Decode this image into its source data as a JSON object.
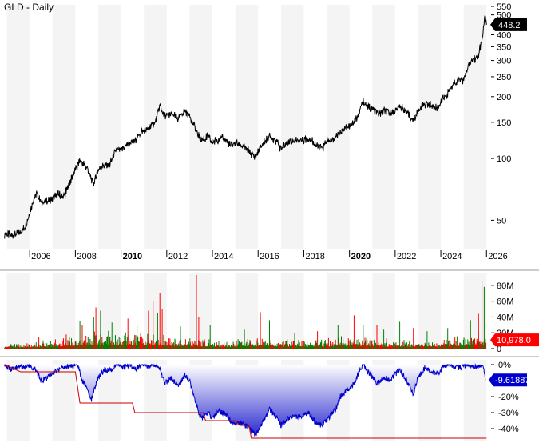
{
  "title": "GLD - Daily",
  "chart_data": [
    {
      "type": "line",
      "name": "price-panel",
      "title": "GLD - Daily",
      "scale": "log",
      "ylim": [
        36,
        560
      ],
      "xlim": [
        2004.7,
        2026.2
      ],
      "y_ticks": [
        50,
        100,
        150,
        200,
        250,
        300,
        350,
        400,
        450,
        500,
        550
      ],
      "x_ticks": [
        {
          "x": 2006,
          "label": "2006",
          "bold": false
        },
        {
          "x": 2008,
          "label": "2008",
          "bold": false
        },
        {
          "x": 2010,
          "label": "2010",
          "bold": true
        },
        {
          "x": 2012,
          "label": "2012",
          "bold": false
        },
        {
          "x": 2014,
          "label": "2014",
          "bold": false
        },
        {
          "x": 2016,
          "label": "2016",
          "bold": false
        },
        {
          "x": 2018,
          "label": "2018",
          "bold": false
        },
        {
          "x": 2020,
          "label": "2020",
          "bold": true
        },
        {
          "x": 2022,
          "label": "2022",
          "bold": false
        },
        {
          "x": 2024,
          "label": "2024",
          "bold": false
        },
        {
          "x": 2026,
          "label": "2026",
          "bold": false
        }
      ],
      "last_value_label": "448.2",
      "series": [
        {
          "color": "#000000",
          "points": [
            [
              2004.9,
              43
            ],
            [
              2005.2,
              42
            ],
            [
              2005.5,
              43
            ],
            [
              2005.8,
              46
            ],
            [
              2006.0,
              55
            ],
            [
              2006.3,
              68
            ],
            [
              2006.5,
              61
            ],
            [
              2006.8,
              62
            ],
            [
              2007.0,
              63
            ],
            [
              2007.2,
              67
            ],
            [
              2007.5,
              65
            ],
            [
              2007.8,
              78
            ],
            [
              2008.0,
              88
            ],
            [
              2008.2,
              98
            ],
            [
              2008.5,
              90
            ],
            [
              2008.8,
              75
            ],
            [
              2009.0,
              88
            ],
            [
              2009.2,
              92
            ],
            [
              2009.5,
              93
            ],
            [
              2009.8,
              110
            ],
            [
              2010.0,
              110
            ],
            [
              2010.3,
              118
            ],
            [
              2010.6,
              122
            ],
            [
              2010.9,
              135
            ],
            [
              2011.2,
              140
            ],
            [
              2011.5,
              150
            ],
            [
              2011.7,
              180
            ],
            [
              2011.9,
              160
            ],
            [
              2012.2,
              165
            ],
            [
              2012.5,
              155
            ],
            [
              2012.8,
              170
            ],
            [
              2013.0,
              162
            ],
            [
              2013.3,
              135
            ],
            [
              2013.5,
              123
            ],
            [
              2013.8,
              128
            ],
            [
              2014.0,
              120
            ],
            [
              2014.3,
              125
            ],
            [
              2014.5,
              126
            ],
            [
              2014.8,
              115
            ],
            [
              2015.0,
              120
            ],
            [
              2015.3,
              115
            ],
            [
              2015.6,
              108
            ],
            [
              2015.9,
              102
            ],
            [
              2016.2,
              118
            ],
            [
              2016.5,
              128
            ],
            [
              2016.8,
              122
            ],
            [
              2017.0,
              112
            ],
            [
              2017.3,
              120
            ],
            [
              2017.6,
              122
            ],
            [
              2017.9,
              123
            ],
            [
              2018.2,
              126
            ],
            [
              2018.6,
              115
            ],
            [
              2018.8,
              112
            ],
            [
              2019.0,
              122
            ],
            [
              2019.3,
              122
            ],
            [
              2019.5,
              133
            ],
            [
              2019.8,
              140
            ],
            [
              2020.0,
              145
            ],
            [
              2020.2,
              152
            ],
            [
              2020.4,
              165
            ],
            [
              2020.6,
              190
            ],
            [
              2020.8,
              178
            ],
            [
              2021.0,
              175
            ],
            [
              2021.3,
              165
            ],
            [
              2021.5,
              170
            ],
            [
              2021.8,
              168
            ],
            [
              2022.0,
              170
            ],
            [
              2022.2,
              180
            ],
            [
              2022.5,
              168
            ],
            [
              2022.8,
              152
            ],
            [
              2023.0,
              170
            ],
            [
              2023.3,
              185
            ],
            [
              2023.6,
              180
            ],
            [
              2023.8,
              175
            ],
            [
              2024.0,
              190
            ],
            [
              2024.2,
              200
            ],
            [
              2024.5,
              225
            ],
            [
              2024.8,
              245
            ],
            [
              2025.0,
              240
            ],
            [
              2025.2,
              280
            ],
            [
              2025.4,
              305
            ],
            [
              2025.6,
              310
            ],
            [
              2025.8,
              370
            ],
            [
              2025.93,
              490
            ],
            [
              2026.0,
              448
            ]
          ]
        }
      ]
    },
    {
      "type": "bar",
      "name": "volume-panel",
      "ylim": [
        0,
        95
      ],
      "y_ticks": [
        {
          "value": 0,
          "label": "0"
        },
        {
          "value": 20,
          "label": "20M"
        },
        {
          "value": 40,
          "label": "40M"
        },
        {
          "value": 60,
          "label": "60M"
        },
        {
          "value": 80,
          "label": "80M"
        }
      ],
      "last_value_label": "10,978.0",
      "up_color": "#008000",
      "down_color": "#ff0000",
      "baseline": [
        [
          2005.0,
          4
        ],
        [
          2006.5,
          6
        ],
        [
          2008.0,
          12
        ],
        [
          2009.0,
          14
        ],
        [
          2010.0,
          14
        ],
        [
          2011.0,
          15
        ],
        [
          2012.0,
          10
        ],
        [
          2013.0,
          11
        ],
        [
          2014.0,
          8
        ],
        [
          2015.0,
          7
        ],
        [
          2016.0,
          10
        ],
        [
          2017.0,
          8
        ],
        [
          2018.0,
          7
        ],
        [
          2019.0,
          8
        ],
        [
          2020.0,
          12
        ],
        [
          2021.0,
          9
        ],
        [
          2022.0,
          8
        ],
        [
          2023.0,
          7
        ],
        [
          2024.0,
          8
        ],
        [
          2025.0,
          12
        ],
        [
          2026.0,
          14
        ]
      ],
      "spikes": [
        [
          2006.4,
          14,
          "down"
        ],
        [
          2007.6,
          18,
          "down"
        ],
        [
          2008.2,
          35,
          "up"
        ],
        [
          2008.3,
          30,
          "down"
        ],
        [
          2008.8,
          40,
          "up"
        ],
        [
          2008.9,
          52,
          "down"
        ],
        [
          2009.1,
          48,
          "up"
        ],
        [
          2009.6,
          33,
          "up"
        ],
        [
          2010.3,
          38,
          "down"
        ],
        [
          2010.7,
          30,
          "up"
        ],
        [
          2011.2,
          48,
          "down"
        ],
        [
          2011.4,
          60,
          "down"
        ],
        [
          2011.6,
          45,
          "up"
        ],
        [
          2011.7,
          70,
          "down"
        ],
        [
          2011.8,
          50,
          "down"
        ],
        [
          2012.6,
          28,
          "up"
        ],
        [
          2013.3,
          93,
          "down"
        ],
        [
          2013.4,
          40,
          "down"
        ],
        [
          2013.9,
          30,
          "up"
        ],
        [
          2015.4,
          24,
          "up"
        ],
        [
          2016.1,
          46,
          "down"
        ],
        [
          2016.5,
          36,
          "up"
        ],
        [
          2017.6,
          20,
          "up"
        ],
        [
          2018.6,
          22,
          "down"
        ],
        [
          2019.5,
          30,
          "up"
        ],
        [
          2020.2,
          42,
          "down"
        ],
        [
          2020.6,
          30,
          "up"
        ],
        [
          2021.2,
          30,
          "down"
        ],
        [
          2021.5,
          24,
          "up"
        ],
        [
          2022.2,
          34,
          "up"
        ],
        [
          2022.8,
          26,
          "down"
        ],
        [
          2023.4,
          22,
          "up"
        ],
        [
          2024.3,
          26,
          "up"
        ],
        [
          2025.3,
          36,
          "up"
        ],
        [
          2025.65,
          44,
          "down"
        ],
        [
          2025.8,
          86,
          "down"
        ],
        [
          2025.9,
          78,
          "up"
        ]
      ]
    },
    {
      "type": "area",
      "name": "drawdown-panel",
      "ylim": [
        -48,
        3
      ],
      "y_ticks": [
        {
          "value": 0,
          "label": "0%"
        },
        {
          "value": -10,
          "label": "-10%"
        },
        {
          "value": -20,
          "label": "-20%"
        },
        {
          "value": -30,
          "label": "-30%"
        },
        {
          "value": -40,
          "label": "-40%"
        }
      ],
      "last_value_label": "-9.61887",
      "fill_color": "#2b2bd0",
      "line_color": "#0000cc",
      "max_drawdown_color": "#cc0000",
      "points": [
        [
          2004.9,
          0
        ],
        [
          2005.2,
          -3
        ],
        [
          2005.5,
          -1
        ],
        [
          2005.8,
          -2
        ],
        [
          2006.0,
          0
        ],
        [
          2006.3,
          -4
        ],
        [
          2006.5,
          -10
        ],
        [
          2006.8,
          -8
        ],
        [
          2007.0,
          -5
        ],
        [
          2007.3,
          -3
        ],
        [
          2007.6,
          -1
        ],
        [
          2007.9,
          0
        ],
        [
          2008.1,
          0
        ],
        [
          2008.3,
          -10
        ],
        [
          2008.5,
          -15
        ],
        [
          2008.7,
          -22
        ],
        [
          2008.9,
          -12
        ],
        [
          2009.1,
          -6
        ],
        [
          2009.3,
          -3
        ],
        [
          2009.5,
          -4
        ],
        [
          2009.8,
          0
        ],
        [
          2010.1,
          -2
        ],
        [
          2010.4,
          0
        ],
        [
          2010.6,
          -3
        ],
        [
          2010.9,
          0
        ],
        [
          2011.2,
          -1
        ],
        [
          2011.5,
          0
        ],
        [
          2011.7,
          -2
        ],
        [
          2011.9,
          -12
        ],
        [
          2012.2,
          -8
        ],
        [
          2012.5,
          -14
        ],
        [
          2012.8,
          -6
        ],
        [
          2013.0,
          -10
        ],
        [
          2013.3,
          -25
        ],
        [
          2013.5,
          -34
        ],
        [
          2013.8,
          -30
        ],
        [
          2014.0,
          -33
        ],
        [
          2014.3,
          -29
        ],
        [
          2014.6,
          -31
        ],
        [
          2014.9,
          -37
        ],
        [
          2015.2,
          -36
        ],
        [
          2015.5,
          -39
        ],
        [
          2015.9,
          -44
        ],
        [
          2016.2,
          -36
        ],
        [
          2016.5,
          -28
        ],
        [
          2016.8,
          -33
        ],
        [
          2017.0,
          -38
        ],
        [
          2017.3,
          -34
        ],
        [
          2017.6,
          -32
        ],
        [
          2017.9,
          -33
        ],
        [
          2018.2,
          -30
        ],
        [
          2018.5,
          -36
        ],
        [
          2018.8,
          -38
        ],
        [
          2019.1,
          -33
        ],
        [
          2019.4,
          -28
        ],
        [
          2019.6,
          -20
        ],
        [
          2019.9,
          -16
        ],
        [
          2020.2,
          -12
        ],
        [
          2020.4,
          -5
        ],
        [
          2020.6,
          0
        ],
        [
          2020.9,
          -6
        ],
        [
          2021.2,
          -12
        ],
        [
          2021.5,
          -8
        ],
        [
          2021.8,
          -10
        ],
        [
          2022.0,
          -6
        ],
        [
          2022.2,
          -3
        ],
        [
          2022.5,
          -10
        ],
        [
          2022.8,
          -18
        ],
        [
          2023.0,
          -8
        ],
        [
          2023.3,
          -2
        ],
        [
          2023.6,
          -4
        ],
        [
          2023.9,
          -6
        ],
        [
          2024.1,
          -1
        ],
        [
          2024.4,
          0
        ],
        [
          2024.7,
          -2
        ],
        [
          2025.0,
          -1
        ],
        [
          2025.3,
          0
        ],
        [
          2025.6,
          -2
        ],
        [
          2025.85,
          0
        ],
        [
          2025.95,
          -9.6
        ]
      ],
      "max_drawdown_steps": [
        [
          2004.9,
          0
        ],
        [
          2005.6,
          -4.5
        ],
        [
          2008.0,
          -4.5
        ],
        [
          2008.2,
          -24
        ],
        [
          2010.5,
          -24
        ],
        [
          2010.6,
          -30
        ],
        [
          2013.6,
          -30
        ],
        [
          2013.7,
          -35
        ],
        [
          2015.0,
          -35
        ],
        [
          2015.2,
          -38
        ],
        [
          2015.6,
          -38
        ],
        [
          2015.7,
          -46
        ],
        [
          2026.0,
          -46
        ]
      ]
    }
  ]
}
